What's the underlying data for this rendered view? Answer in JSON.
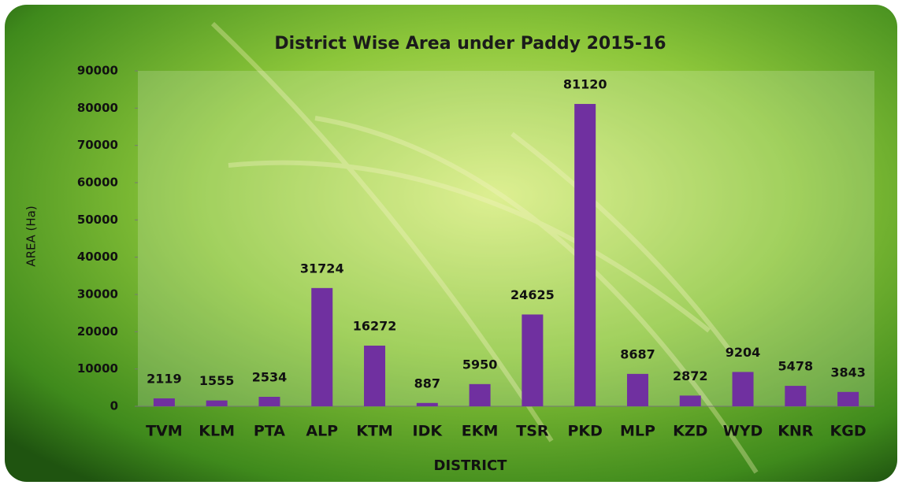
{
  "chart_data": {
    "type": "bar",
    "title": "District Wise Area under Paddy 2015-16",
    "x_label": "DISTRICT",
    "y_label": "AREA (Ha)",
    "categories": [
      "TVM",
      "KLM",
      "PTA",
      "ALP",
      "KTM",
      "IDK",
      "EKM",
      "TSR",
      "PKD",
      "MLP",
      "KZD",
      "WYD",
      "KNR",
      "KGD"
    ],
    "values": [
      2119,
      1555,
      2534,
      31724,
      16272,
      887,
      5950,
      24625,
      81120,
      8687,
      2872,
      9204,
      5478,
      3843
    ],
    "color": "#7030a0",
    "ylim": [
      0,
      90000
    ],
    "yticks": [
      0,
      10000,
      20000,
      30000,
      40000,
      50000,
      60000,
      70000,
      80000,
      90000
    ],
    "grid": false
  }
}
